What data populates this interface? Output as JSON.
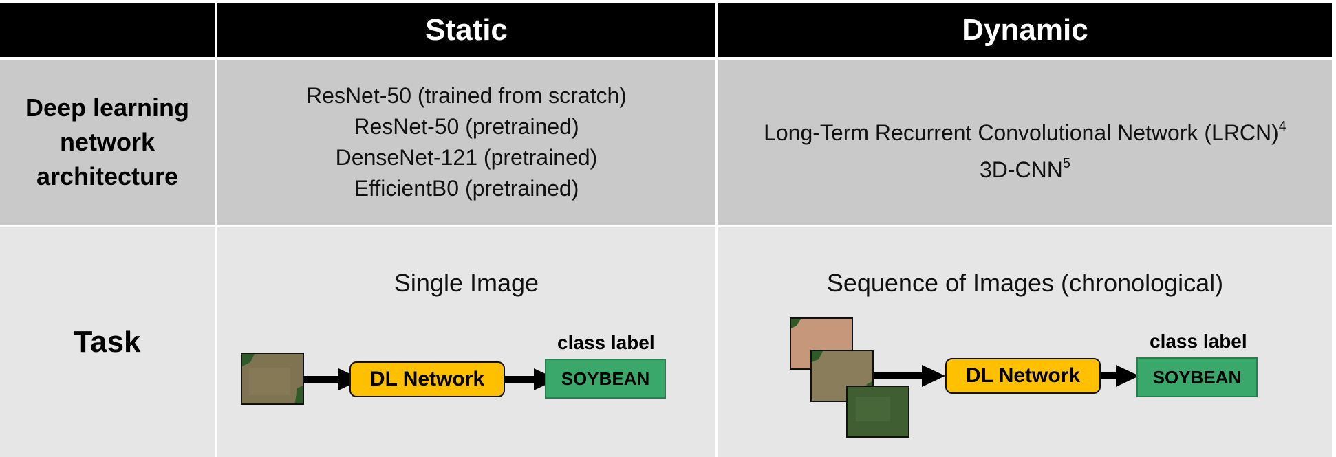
{
  "header": {
    "corner": "",
    "static_label": "Static",
    "dynamic_label": "Dynamic"
  },
  "rows": {
    "architecture_label": "Deep learning network architecture",
    "task_label": "Task"
  },
  "static": {
    "architectures": [
      "ResNet-50 (trained from scratch)",
      "ResNet-50 (pretrained)",
      "DenseNet-121 (pretrained)",
      "EfficientB0 (pretrained)"
    ],
    "task_title": "Single Image",
    "network_label": "DL Network",
    "class_caption": "class label",
    "class_value": "SOYBEAN"
  },
  "dynamic": {
    "architectures": [
      {
        "text": "Long-Term Recurrent Convolutional Network (LRCN)",
        "sup": "4"
      },
      {
        "text": "3D-CNN",
        "sup": "5"
      }
    ],
    "task_title": "Sequence of Images (chronological)",
    "network_label": "DL Network",
    "class_caption": "class label",
    "class_value": "SOYBEAN"
  },
  "colors": {
    "header_bg": "#000000",
    "row1_bg": "#c9c9c9",
    "row2_bg": "#e6e6e6",
    "network_box": "#ffc000",
    "label_box": "#3aa86b"
  }
}
